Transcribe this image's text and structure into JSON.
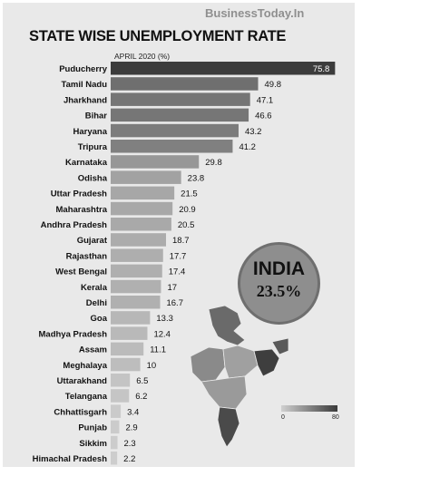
{
  "header": {
    "brand": "BusinessToday.In"
  },
  "chart_data": {
    "type": "bar",
    "orientation": "horizontal",
    "title": "STATE WISE UNEMPLOYMENT RATE",
    "subtitle": "APRIL 2020 (%)",
    "categories": [
      "Puducherry",
      "Tamil Nadu",
      "Jharkhand",
      "Bihar",
      "Haryana",
      "Tripura",
      "Karnataka",
      "Odisha",
      "Uttar Pradesh",
      "Maharashtra",
      "Andhra Pradesh",
      "Gujarat",
      "Rajasthan",
      "West Bengal",
      "Kerala",
      "Delhi",
      "Goa",
      "Madhya Pradesh",
      "Assam",
      "Meghalaya",
      "Uttarakhand",
      "Telangana",
      "Chhattisgarh",
      "Punjab",
      "Sikkim",
      "Himachal Pradesh"
    ],
    "values": [
      75.8,
      49.8,
      47.1,
      46.6,
      43.2,
      41.2,
      29.8,
      23.8,
      21.5,
      20.9,
      20.5,
      18.7,
      17.7,
      17.4,
      17,
      16.7,
      13.3,
      12.4,
      11.1,
      10,
      6.5,
      6.2,
      3.4,
      2.9,
      2.3,
      2.2
    ],
    "value_labels": [
      "75.8",
      "49.8",
      "47.1",
      "46.6",
      "43.2",
      "41.2",
      "29.8",
      "23.8",
      "21.5",
      "20.9",
      "20.5",
      "18.7",
      "17.7",
      "17.4",
      "17",
      "16.7",
      "13.3",
      "12.4",
      "11.1",
      "10",
      "6.5",
      "6.2",
      "3.4",
      "2.9",
      "2.3",
      "2.2"
    ],
    "xlim": [
      0,
      76
    ],
    "grid": false,
    "legend": false
  },
  "callout": {
    "name": "INDIA",
    "rate": "23.5%"
  },
  "map_legend": {
    "min": "0",
    "max": "80",
    "color_low": "#d0d0d0",
    "color_high": "#3a3a3a"
  }
}
